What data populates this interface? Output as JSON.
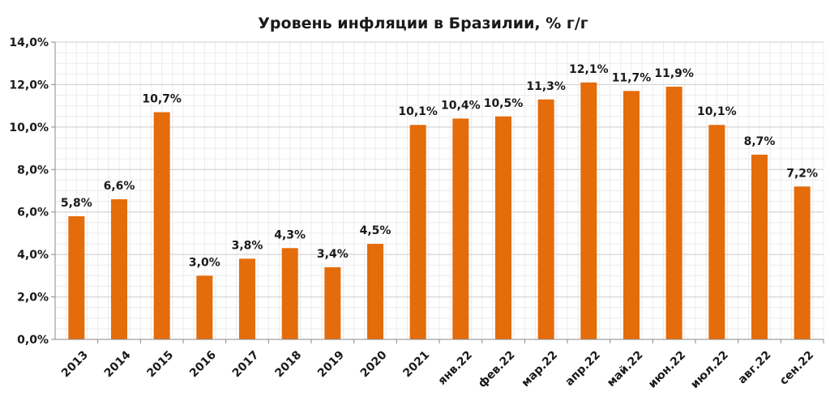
{
  "chart_data": {
    "type": "bar",
    "title": "Уровень инфляции в Бразилии, % г/г",
    "xlabel": "",
    "ylabel": "",
    "ylim": [
      0,
      14
    ],
    "y_ticks": [
      0,
      2,
      4,
      6,
      8,
      10,
      12,
      14
    ],
    "y_tick_labels": [
      "0,0%",
      "2,0%",
      "4,0%",
      "6,0%",
      "8,0%",
      "10,0%",
      "12,0%",
      "14,0%"
    ],
    "grid": true,
    "legend": "none",
    "bar_color": "#E46C0A",
    "categories": [
      "2013",
      "2014",
      "2015",
      "2016",
      "2017",
      "2018",
      "2019",
      "2020",
      "2021",
      "янв.22",
      "фев.22",
      "мар.22",
      "апр.22",
      "май.22",
      "июн.22",
      "июл.22",
      "авг.22",
      "сен.22"
    ],
    "values": [
      5.8,
      6.6,
      10.7,
      3.0,
      3.8,
      4.3,
      3.4,
      4.5,
      10.1,
      10.4,
      10.5,
      11.3,
      12.1,
      11.7,
      11.9,
      10.1,
      8.7,
      7.2
    ],
    "data_labels": [
      "5,8%",
      "6,6%",
      "10,7%",
      "3,0%",
      "3,8%",
      "4,3%",
      "3,4%",
      "4,5%",
      "10,1%",
      "10,4%",
      "10,5%",
      "11,3%",
      "12,1%",
      "11,7%",
      "11,9%",
      "10,1%",
      "8,7%",
      "7,2%"
    ]
  }
}
